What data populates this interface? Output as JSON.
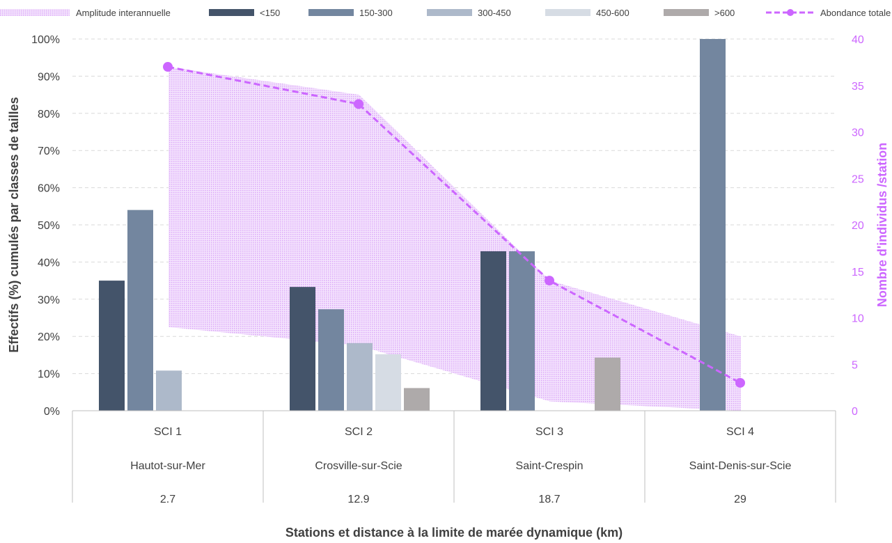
{
  "chart_data": {
    "type": "bar",
    "legend_position": "top",
    "legend": [
      {
        "label": "Amplitude interannuelle",
        "kind": "band"
      },
      {
        "label": "<150",
        "kind": "bar",
        "series": 0
      },
      {
        "label": "150-300",
        "kind": "bar",
        "series": 1
      },
      {
        "label": "300-450",
        "kind": "bar",
        "series": 2
      },
      {
        "label": "450-600",
        "kind": "bar",
        "series": 3
      },
      {
        "label": ">600",
        "kind": "bar",
        "series": 4
      },
      {
        "label": "Abondance totale",
        "kind": "line"
      }
    ],
    "categories": [
      {
        "code": "SCI 1",
        "name": "Hautot-sur-Mer",
        "distance": "2.7"
      },
      {
        "code": "SCI 2",
        "name": "Crosville-sur-Scie",
        "distance": "12.9"
      },
      {
        "code": "SCI 3",
        "name": "Saint-Crespin",
        "distance": "18.7"
      },
      {
        "code": "SCI 4",
        "name": "Saint-Denis-sur-Scie",
        "distance": "29"
      }
    ],
    "series": [
      {
        "name": "<150",
        "color": "#44546a",
        "values": [
          35,
          33.3,
          42.9,
          0
        ]
      },
      {
        "name": "150-300",
        "color": "#73869f",
        "values": [
          54,
          27.3,
          42.9,
          100
        ]
      },
      {
        "name": "300-450",
        "color": "#adb9ca",
        "values": [
          10.8,
          18.2,
          0,
          0
        ]
      },
      {
        "name": "450-600",
        "color": "#d6dce4",
        "values": [
          0,
          15.2,
          0,
          0
        ]
      },
      {
        "name": ">600",
        "color": "#aeaaaa",
        "values": [
          0,
          6.1,
          14.3,
          0
        ]
      }
    ],
    "abundance": {
      "name": "Abondance totale",
      "color": "#cc66ff",
      "values": [
        37,
        33,
        14,
        3
      ]
    },
    "amplitude": {
      "name": "Amplitude interannuelle",
      "color": "#e9c6fb",
      "min": [
        9,
        7,
        1,
        0
      ],
      "max": [
        37,
        34,
        14,
        8
      ]
    },
    "y_left": {
      "label": "Effectifs (%) cumulés par classes de tailles",
      "range": [
        0,
        100
      ],
      "step": 10,
      "tick_suffix": "%"
    },
    "y_right": {
      "label": "Nombre d'individus /station",
      "range": [
        0,
        40
      ],
      "step": 5,
      "color": "#cc66ff"
    },
    "x_label": "Stations et distance à la limite de marée dynamique (km)",
    "grid": true
  }
}
